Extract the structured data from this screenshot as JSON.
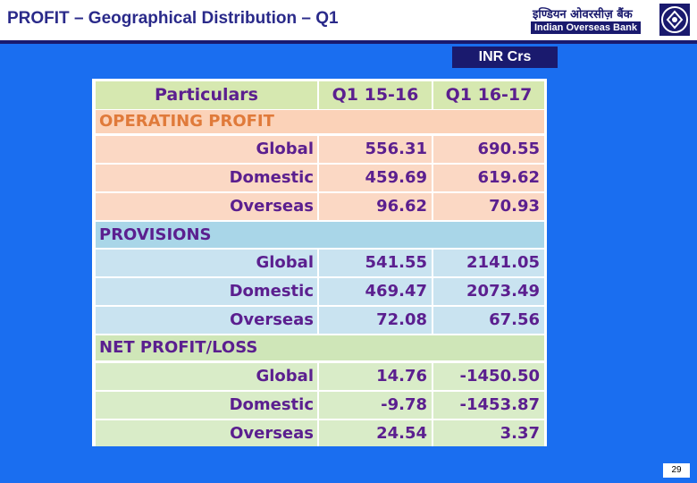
{
  "header": {
    "title": "PROFIT – Geographical Distribution – Q1",
    "logo_hindi": "इण्डियन ओवरसीज़ बैंक",
    "logo_english": "Indian Overseas Bank"
  },
  "unit_label": "INR Crs",
  "table": {
    "columns": [
      "Particulars",
      "Q1 15-16",
      "Q1 16-17"
    ],
    "sections": [
      {
        "title": "OPERATING PROFIT",
        "rows": [
          {
            "label": "Global",
            "q1_15_16": "556.31",
            "q1_16_17": "690.55"
          },
          {
            "label": "Domestic",
            "q1_15_16": "459.69",
            "q1_16_17": "619.62"
          },
          {
            "label": "Overseas",
            "q1_15_16": "96.62",
            "q1_16_17": "70.93"
          }
        ]
      },
      {
        "title": "PROVISIONS",
        "rows": [
          {
            "label": "Global",
            "q1_15_16": "541.55",
            "q1_16_17": "2141.05"
          },
          {
            "label": "Domestic",
            "q1_15_16": "469.47",
            "q1_16_17": "2073.49"
          },
          {
            "label": "Overseas",
            "q1_15_16": "72.08",
            "q1_16_17": "67.56"
          }
        ]
      },
      {
        "title": "NET PROFIT/LOSS",
        "rows": [
          {
            "label": "Global",
            "q1_15_16": "14.76",
            "q1_16_17": "-1450.50"
          },
          {
            "label": "Domestic",
            "q1_15_16": "-9.78",
            "q1_16_17": "-1453.87"
          },
          {
            "label": "Overseas",
            "q1_15_16": "24.54",
            "q1_16_17": "3.37"
          }
        ]
      }
    ]
  },
  "page_number": "29"
}
